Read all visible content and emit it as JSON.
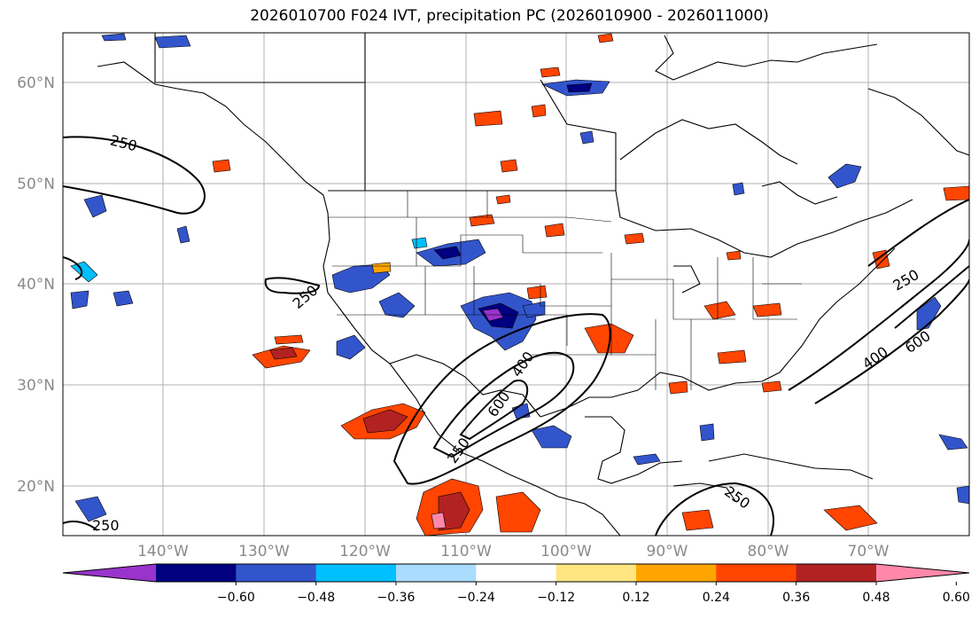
{
  "title": "2026010700 F024 IVT, precipitation PC (2026010900 - 2026011000)",
  "map": {
    "lat_ticks": [
      "60°N",
      "50°N",
      "40°N",
      "30°N",
      "20°N"
    ],
    "lon_ticks": [
      "140°W",
      "130°W",
      "120°W",
      "110°W",
      "100°W",
      "90°W",
      "80°W",
      "70°W"
    ],
    "ivt_contour_labels": [
      "250",
      "250",
      "400",
      "600",
      "250",
      "400",
      "600",
      "250",
      "250",
      "250"
    ]
  },
  "colorbar": {
    "ticks": [
      "−0.60",
      "−0.48",
      "−0.36",
      "−0.24",
      "−0.12",
      "0.12",
      "0.24",
      "0.36",
      "0.48",
      "0.60"
    ],
    "colors": [
      "#9933cc",
      "#000080",
      "#3355cc",
      "#00bfff",
      "#aadcff",
      "#ffffff",
      "#ffe680",
      "#ffa500",
      "#ff4500",
      "#b22222",
      "#ff88aa"
    ]
  }
}
